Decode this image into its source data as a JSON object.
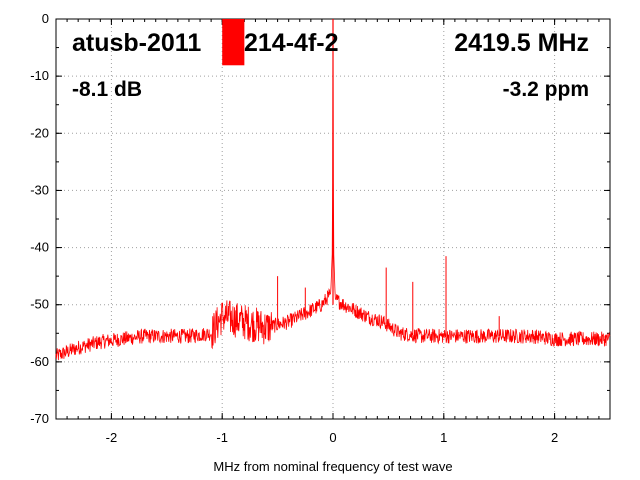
{
  "chart_data": {
    "type": "line",
    "title": "",
    "xlabel": "MHz from nominal frequency of test wave",
    "ylabel": "",
    "xlim": [
      -2.5,
      2.5
    ],
    "ylim": [
      -70,
      0
    ],
    "x_ticks": [
      -2,
      -1,
      0,
      1,
      2
    ],
    "x_tick_labels": [
      "-2",
      "-1",
      "0",
      "1",
      "2"
    ],
    "y_ticks": [
      0,
      -10,
      -20,
      -30,
      -40,
      -50,
      -60,
      -70
    ],
    "y_tick_labels": [
      "0",
      "-10",
      "-20",
      "-30",
      "-40",
      "-50",
      "-60",
      "-70"
    ],
    "grid": true,
    "series_color": "#ff0000",
    "annotations": {
      "device": "atusb-2011",
      "device_suffix": "214-4f-2",
      "frequency": "2419.5 MHz",
      "level": "-8.1 dB",
      "offset": "-3.2 ppm"
    },
    "marker": {
      "x_from": -1.0,
      "x_to": -0.8,
      "y_from": 0,
      "y_to": -8.1,
      "color": "#ff0000"
    },
    "series": [
      {
        "x": [
          -2.5,
          -2.3,
          -2.1,
          -1.9,
          -1.7,
          -1.5,
          -1.3,
          -1.1,
          -1.0,
          -0.9,
          -0.8,
          -0.6,
          -0.4,
          -0.2,
          -0.1,
          -0.02,
          -0.005,
          0.0,
          0.005,
          0.02,
          0.1,
          0.2,
          0.3,
          0.45,
          0.6,
          0.8,
          1.0,
          1.2,
          1.4,
          1.6,
          1.8,
          2.0,
          2.2,
          2.4,
          2.5
        ],
        "y": [
          -59,
          -57.5,
          -56.5,
          -56,
          -55.5,
          -55.5,
          -55.5,
          -55,
          -52,
          -52.5,
          -53,
          -54,
          -53,
          -51,
          -50,
          -48,
          -40,
          0,
          -40,
          -49,
          -50,
          -51,
          -52,
          -53,
          -55,
          -55.5,
          -55.5,
          -55.5,
          -55.5,
          -55.5,
          -55.5,
          -56,
          -56,
          -56,
          -56
        ]
      }
    ],
    "spurs": [
      {
        "x": -0.5,
        "y": -45
      },
      {
        "x": -0.25,
        "y": -47
      },
      {
        "x": 0.48,
        "y": -43.5
      },
      {
        "x": 0.72,
        "y": -46
      },
      {
        "x": 1.02,
        "y": -41.5
      },
      {
        "x": 1.5,
        "y": -52
      }
    ]
  }
}
